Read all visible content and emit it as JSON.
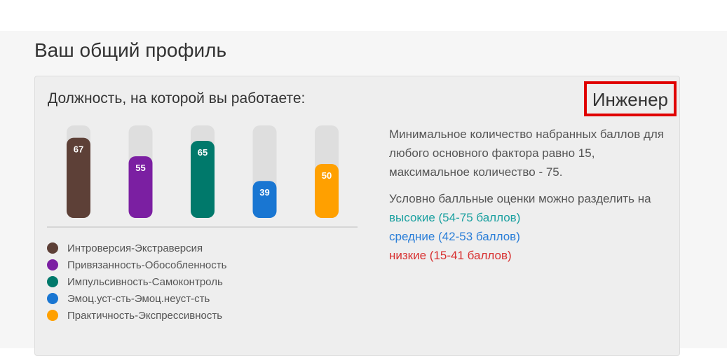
{
  "page": {
    "title": "Ваш общий профиль"
  },
  "card": {
    "position_label": "Должность, на которой вы работаете:",
    "position_value": "Инженер"
  },
  "colors": {
    "highlight_border": "#e00000",
    "high": "#1aa0a0",
    "medium": "#2a7ed8",
    "low": "#d83030"
  },
  "chart_data": {
    "type": "bar",
    "categories": [
      "Интроверсия-Экстраверсия",
      "Привязанность-Обособленность",
      "Импульсивность-Самоконтроль",
      "Эмоц.уст-сть-Эмоц.неуст-сть",
      "Практичность-Экспрессивность"
    ],
    "values": [
      67,
      55,
      65,
      39,
      50
    ],
    "colors": [
      "#5d4037",
      "#7b1fa2",
      "#00796b",
      "#1976d2",
      "#ffa000"
    ],
    "ylim": [
      15,
      75
    ],
    "data_labels": true,
    "legend": "bottom"
  },
  "info": {
    "paragraph1": "Минимальное количество набранных баллов для любого основного фактора равно 15, максимальное количество - 75.",
    "paragraph2": "Условно балльные оценки можно разделить на",
    "levels": {
      "high": "высокие (54-75 баллов)",
      "medium": "средние (42-53 баллов)",
      "low": "низкие (15-41 баллов)"
    }
  }
}
